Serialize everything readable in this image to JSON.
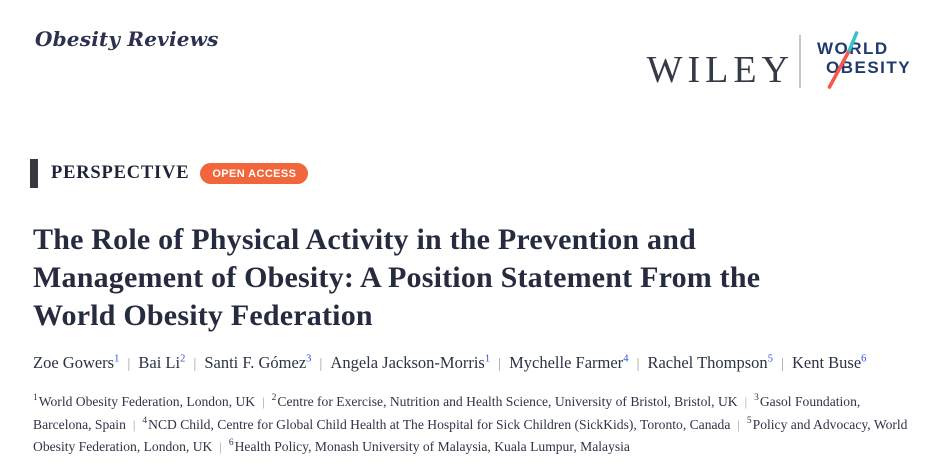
{
  "masthead": {
    "journal_title": "Obesity Reviews",
    "wiley_logo": "WILEY",
    "world_obesity_logo": {
      "line1": "WORLD",
      "line2": "OBESITY"
    }
  },
  "brand_colors": {
    "open_access_orange": "#F1663B",
    "logo_navy": "#203A6D",
    "logo_teal": "#35C4C6",
    "logo_coral": "#F3594C",
    "text_navy": "#262B3F",
    "author_sup_blue": "#2B50E6"
  },
  "article_type": {
    "label": "PERSPECTIVE",
    "open_access_badge": "OPEN ACCESS"
  },
  "title": {
    "full": "The Role of Physical Activity in the Prevention and Management of Obesity: A Position Statement From the World Obesity Federation",
    "line1": "The Role of Physical Activity in the Prevention and",
    "line2": "Management of Obesity: A Position Statement From the",
    "line3": "World Obesity Federation"
  },
  "authors": {
    "separator": "|",
    "list": [
      {
        "name": "Zoe Gowers",
        "sup": "1"
      },
      {
        "name": "Bai Li",
        "sup": "2"
      },
      {
        "name": "Santi F. Gómez",
        "sup": "3"
      },
      {
        "name": "Angela Jackson-Morris",
        "sup": "1"
      },
      {
        "name": "Mychelle Farmer",
        "sup": "4"
      },
      {
        "name": "Rachel Thompson",
        "sup": "5"
      },
      {
        "name": "Kent Buse",
        "sup": "6"
      }
    ]
  },
  "affiliations": {
    "separator": "|",
    "list": [
      {
        "sup": "1",
        "text": "World Obesity Federation, London, UK"
      },
      {
        "sup": "2",
        "text": "Centre for Exercise, Nutrition and Health Science, University of Bristol, Bristol, UK"
      },
      {
        "sup": "3",
        "text": "Gasol Foundation, Barcelona, Spain"
      },
      {
        "sup": "4",
        "text": "NCD Child, Centre for Global Child Health at The Hospital for Sick Children (SickKids), Toronto, Canada"
      },
      {
        "sup": "5",
        "text": "Policy and Advocacy, World Obesity Federation, London, UK"
      },
      {
        "sup": "6",
        "text": "Health Policy, Monash University of Malaysia, Kuala Lumpur, Malaysia"
      }
    ]
  }
}
